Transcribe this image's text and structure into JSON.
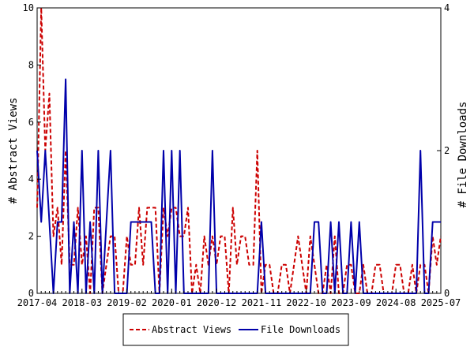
{
  "chart_data": {
    "type": "line",
    "title": "",
    "xlabel": "",
    "ylabel": "# Abstract Views",
    "y2label": "# File Downloads",
    "x_tick_labels": [
      "2017-04",
      "2018-03",
      "2019-02",
      "2020-01",
      "2020-12",
      "2021-11",
      "2022-10",
      "2023-09",
      "2024-08",
      "2025-07"
    ],
    "xlim": [
      "2017-04",
      "2025-07"
    ],
    "ylim": [
      0,
      10
    ],
    "y2lim": [
      0,
      4
    ],
    "y_ticks": [
      0,
      2,
      4,
      6,
      8,
      10
    ],
    "y2_ticks": [
      0,
      2,
      4
    ],
    "grid": false,
    "legend_placement": "bottom-center",
    "series": [
      {
        "name": "Abstract Views",
        "axis": "left",
        "color": "#cc0000",
        "line_style": "dashed",
        "x": [
          "2017-04",
          "2017-05",
          "2017-06",
          "2017-07",
          "2017-08",
          "2017-09",
          "2017-10",
          "2017-11",
          "2017-12",
          "2018-01",
          "2018-02",
          "2018-03",
          "2018-04",
          "2018-05",
          "2018-06",
          "2018-07",
          "2018-08",
          "2018-09",
          "2018-10",
          "2018-11",
          "2018-12",
          "2019-01",
          "2019-02",
          "2019-03",
          "2019-04",
          "2019-05",
          "2019-06",
          "2019-07",
          "2019-08",
          "2019-09",
          "2019-10",
          "2019-11",
          "2019-12",
          "2020-01",
          "2020-02",
          "2020-03",
          "2020-04",
          "2020-05",
          "2020-06",
          "2020-07",
          "2020-08",
          "2020-09",
          "2020-10",
          "2020-11",
          "2020-12",
          "2021-01",
          "2021-02",
          "2021-03",
          "2021-04",
          "2021-05",
          "2021-06",
          "2021-07",
          "2021-08",
          "2021-09",
          "2021-10",
          "2021-11",
          "2021-12",
          "2022-01",
          "2022-02",
          "2022-03",
          "2022-04",
          "2022-05",
          "2022-06",
          "2022-07",
          "2022-08",
          "2022-09",
          "2022-10",
          "2022-11",
          "2022-12",
          "2023-01",
          "2023-02",
          "2023-03",
          "2023-04",
          "2023-05",
          "2023-06",
          "2023-07",
          "2023-08",
          "2023-09",
          "2023-10",
          "2023-11",
          "2023-12",
          "2024-01",
          "2024-02",
          "2024-03",
          "2024-04",
          "2024-05",
          "2024-06",
          "2024-07",
          "2024-08",
          "2024-09",
          "2024-10",
          "2024-11",
          "2024-12",
          "2025-01",
          "2025-02",
          "2025-03",
          "2025-04",
          "2025-05",
          "2025-06",
          "2025-07"
        ],
        "y": [
          3,
          10,
          5,
          7,
          2,
          3,
          1,
          5,
          1,
          1,
          3,
          1,
          2,
          0,
          3,
          3,
          0,
          1,
          2,
          2,
          0,
          0,
          2,
          1,
          1,
          3,
          1,
          3,
          3,
          3,
          0,
          3,
          2,
          3,
          3,
          2,
          2,
          3,
          0,
          1,
          0,
          2,
          1,
          2,
          1,
          2,
          2,
          0,
          3,
          1,
          2,
          2,
          1,
          1,
          5,
          0,
          1,
          1,
          0,
          0,
          1,
          1,
          0,
          1,
          2,
          1,
          0,
          2,
          1,
          0,
          0,
          1,
          0,
          2,
          0,
          0,
          1,
          1,
          0,
          0,
          1,
          0,
          0,
          1,
          1,
          0,
          0,
          0,
          1,
          1,
          0,
          0,
          1,
          0,
          1,
          1,
          0,
          2,
          1,
          2
        ]
      },
      {
        "name": "File Downloads",
        "axis": "right",
        "color": "#0000aa",
        "line_style": "solid",
        "x": [
          "2017-04",
          "2017-05",
          "2017-06",
          "2017-07",
          "2017-08",
          "2017-09",
          "2017-10",
          "2017-11",
          "2017-12",
          "2018-01",
          "2018-02",
          "2018-03",
          "2018-04",
          "2018-05",
          "2018-06",
          "2018-07",
          "2018-08",
          "2018-09",
          "2018-10",
          "2018-11",
          "2018-12",
          "2019-01",
          "2019-02",
          "2019-03",
          "2019-04",
          "2019-05",
          "2019-06",
          "2019-07",
          "2019-08",
          "2019-09",
          "2019-10",
          "2019-11",
          "2019-12",
          "2020-01",
          "2020-02",
          "2020-03",
          "2020-04",
          "2020-05",
          "2020-06",
          "2020-07",
          "2020-08",
          "2020-09",
          "2020-10",
          "2020-11",
          "2020-12",
          "2021-01",
          "2021-02",
          "2021-03",
          "2021-04",
          "2021-05",
          "2021-06",
          "2021-07",
          "2021-08",
          "2021-09",
          "2021-10",
          "2021-11",
          "2021-12",
          "2022-01",
          "2022-02",
          "2022-03",
          "2022-04",
          "2022-05",
          "2022-06",
          "2022-07",
          "2022-08",
          "2022-09",
          "2022-10",
          "2022-11",
          "2022-12",
          "2023-01",
          "2023-02",
          "2023-03",
          "2023-04",
          "2023-05",
          "2023-06",
          "2023-07",
          "2023-08",
          "2023-09",
          "2023-10",
          "2023-11",
          "2023-12",
          "2024-01",
          "2024-02",
          "2024-03",
          "2024-04",
          "2024-05",
          "2024-06",
          "2024-07",
          "2024-08",
          "2024-09",
          "2024-10",
          "2024-11",
          "2024-12",
          "2025-01",
          "2025-02",
          "2025-03",
          "2025-04",
          "2025-05",
          "2025-06",
          "2025-07"
        ],
        "y": [
          2,
          1,
          2,
          1,
          0,
          1,
          1,
          3,
          0,
          1,
          0,
          2,
          0,
          1,
          0,
          2,
          0,
          1,
          2,
          0,
          0,
          0,
          0,
          1,
          1,
          1,
          1,
          1,
          1,
          0,
          0,
          2,
          0,
          2,
          0,
          2,
          0,
          0,
          0,
          0,
          0,
          0,
          0,
          2,
          0,
          0,
          0,
          0,
          0,
          0,
          0,
          0,
          0,
          0,
          0,
          1,
          0,
          0,
          0,
          0,
          0,
          0,
          0,
          0,
          0,
          0,
          0,
          0,
          1,
          1,
          0,
          0,
          1,
          0,
          1,
          0,
          0,
          1,
          0,
          1,
          0,
          0,
          0,
          0,
          0,
          0,
          0,
          0,
          0,
          0,
          0,
          0,
          0,
          0,
          2,
          0,
          0,
          1,
          1,
          1
        ]
      }
    ]
  }
}
